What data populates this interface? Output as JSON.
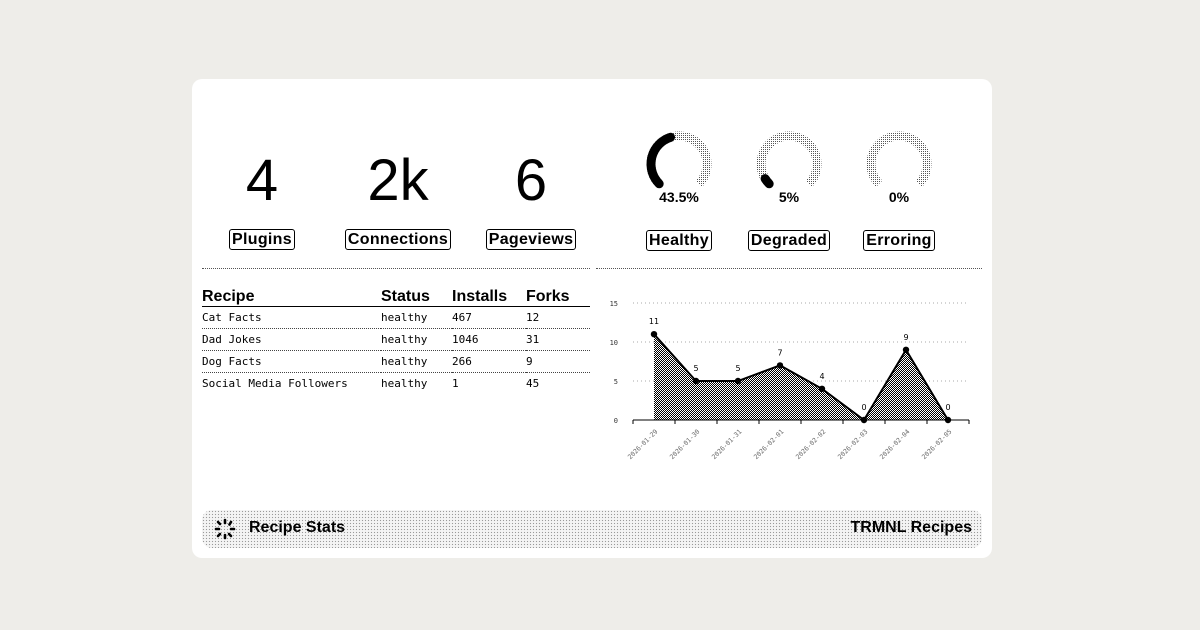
{
  "metrics": [
    {
      "value": "4",
      "label": "Plugins"
    },
    {
      "value": "2k",
      "label": "Connections"
    },
    {
      "value": "6",
      "label": "Pageviews"
    }
  ],
  "gauges": [
    {
      "label": "Healthy",
      "percent_text": "43.5%",
      "percent": 43.5
    },
    {
      "label": "Degraded",
      "percent_text": "5%",
      "percent": 5
    },
    {
      "label": "Erroring",
      "percent_text": "0%",
      "percent": 0
    }
  ],
  "table": {
    "headers": [
      "Recipe",
      "Status",
      "Installs",
      "Forks"
    ],
    "rows": [
      [
        "Cat Facts",
        "healthy",
        "467",
        "12"
      ],
      [
        "Dad Jokes",
        "healthy",
        "1046",
        "31"
      ],
      [
        "Dog Facts",
        "healthy",
        "266",
        "9"
      ],
      [
        "Social Media Followers",
        "healthy",
        "1",
        "45"
      ]
    ]
  },
  "chart_data": {
    "type": "area",
    "x": [
      "2026-01-29",
      "2026-01-30",
      "2026-01-31",
      "2026-02-01",
      "2026-02-02",
      "2026-02-03",
      "2026-02-04",
      "2026-02-05"
    ],
    "values": [
      11,
      5,
      5,
      7,
      4,
      0,
      9,
      0
    ],
    "ylim": [
      0,
      15
    ],
    "yticks": [
      0,
      5,
      10,
      15
    ],
    "grid": true,
    "data_labels": true
  },
  "footer": {
    "title": "Recipe Stats",
    "instance": "TRMNL Recipes",
    "icon": "trmnl-logo-icon"
  }
}
